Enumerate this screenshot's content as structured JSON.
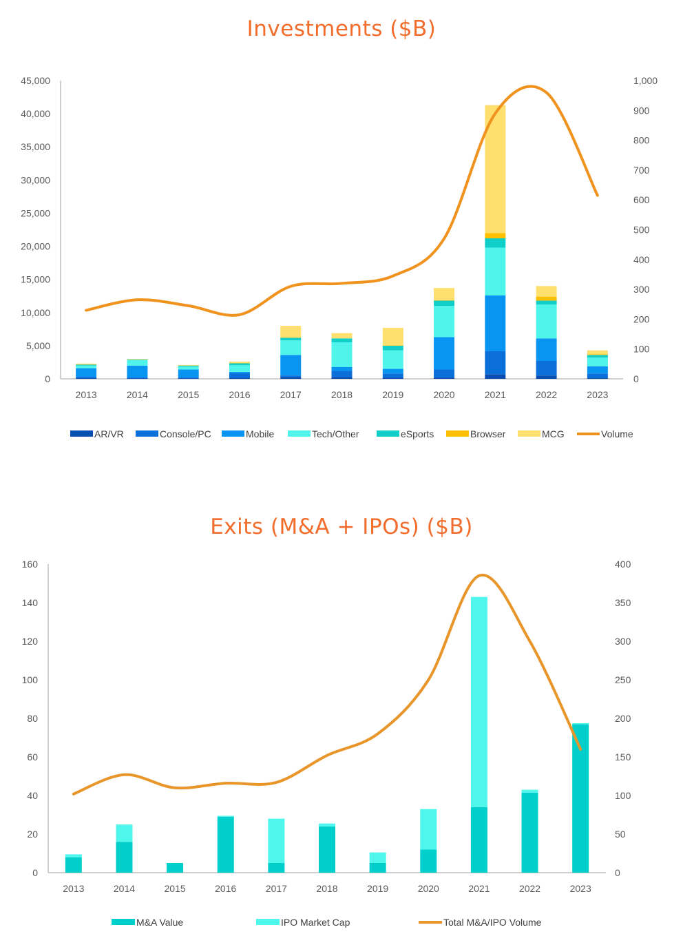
{
  "chart_data": [
    {
      "type": "bar",
      "stacked": true,
      "title": "Investments ($B)",
      "xlabel": "",
      "ylabel": "",
      "categories": [
        "2013",
        "2014",
        "2015",
        "2016",
        "2017",
        "2018",
        "2019",
        "2020",
        "2021",
        "2022",
        "2023"
      ],
      "ylim": [
        0,
        45000
      ],
      "yticks": [
        "0",
        "5,000",
        "10,000",
        "15,000",
        "20,000",
        "25,000",
        "30,000",
        "35,000",
        "40,000",
        "45,000"
      ],
      "y2lim": [
        0,
        1000
      ],
      "y2ticks": [
        "0",
        "100",
        "200",
        "300",
        "400",
        "500",
        "600",
        "700",
        "800",
        "900",
        "1,000"
      ],
      "series": [
        {
          "name": "AR/VR",
          "color": "#0a4fb0",
          "values": [
            100,
            50,
            50,
            150,
            300,
            300,
            200,
            200,
            700,
            500,
            100
          ]
        },
        {
          "name": "Console/PC",
          "color": "#0a6fd8",
          "values": [
            200,
            150,
            150,
            700,
            200,
            900,
            600,
            1200,
            3500,
            2200,
            700
          ]
        },
        {
          "name": "Mobile",
          "color": "#0895f2",
          "values": [
            1300,
            1800,
            1200,
            200,
            3100,
            600,
            700,
            4900,
            8400,
            3400,
            1100
          ]
        },
        {
          "name": "Tech/Other",
          "color": "#4ff5ea",
          "values": [
            400,
            800,
            450,
            1000,
            2200,
            3700,
            2800,
            4700,
            7200,
            5100,
            1300
          ]
        },
        {
          "name": "eSports",
          "color": "#10cec8",
          "values": [
            150,
            100,
            150,
            300,
            400,
            600,
            700,
            800,
            1400,
            600,
            400
          ]
        },
        {
          "name": "Browser",
          "color": "#ffc000",
          "values": [
            50,
            0,
            50,
            50,
            50,
            0,
            50,
            50,
            800,
            600,
            100
          ]
        },
        {
          "name": "MCG",
          "color": "#ffdf6e",
          "values": [
            100,
            100,
            50,
            200,
            1750,
            800,
            2650,
            1850,
            19300,
            1600,
            600
          ]
        }
      ],
      "line_series": {
        "name": "Volume",
        "color": "#f0921e",
        "axis": "right",
        "values": [
          230,
          265,
          245,
          215,
          310,
          320,
          345,
          470,
          890,
          960,
          615
        ]
      },
      "legend": "bottom",
      "grid": false
    },
    {
      "type": "bar",
      "stacked": true,
      "title": "Exits (M&A + IPOs) ($B)",
      "xlabel": "",
      "ylabel": "",
      "categories": [
        "2013",
        "2014",
        "2015",
        "2016",
        "2017",
        "2018",
        "2019",
        "2020",
        "2021",
        "2022",
        "2023"
      ],
      "ylim": [
        0,
        160
      ],
      "yticks": [
        "0",
        "20",
        "40",
        "60",
        "80",
        "100",
        "120",
        "140",
        "160"
      ],
      "y2lim": [
        0,
        400
      ],
      "y2ticks": [
        "0",
        "50",
        "100",
        "150",
        "200",
        "250",
        "300",
        "350",
        "400"
      ],
      "series": [
        {
          "name": "M&A Value",
          "color": "#00cfcc",
          "values": [
            8,
            16,
            5,
            29,
            5,
            24,
            5,
            12,
            34,
            41.5,
            77
          ]
        },
        {
          "name": "IPO Market Cap",
          "color": "#4ef6ec",
          "values": [
            1.5,
            9,
            0,
            0.5,
            23,
            1.5,
            5.5,
            21,
            109,
            1.5,
            0.5
          ]
        }
      ],
      "line_series": {
        "name": "Total M&A/IPO Volume",
        "color": "#e8952a",
        "axis": "right",
        "values": [
          102,
          127,
          110,
          116,
          117,
          152,
          180,
          250,
          385,
          300,
          160
        ]
      },
      "legend": "bottom",
      "grid": false
    }
  ]
}
